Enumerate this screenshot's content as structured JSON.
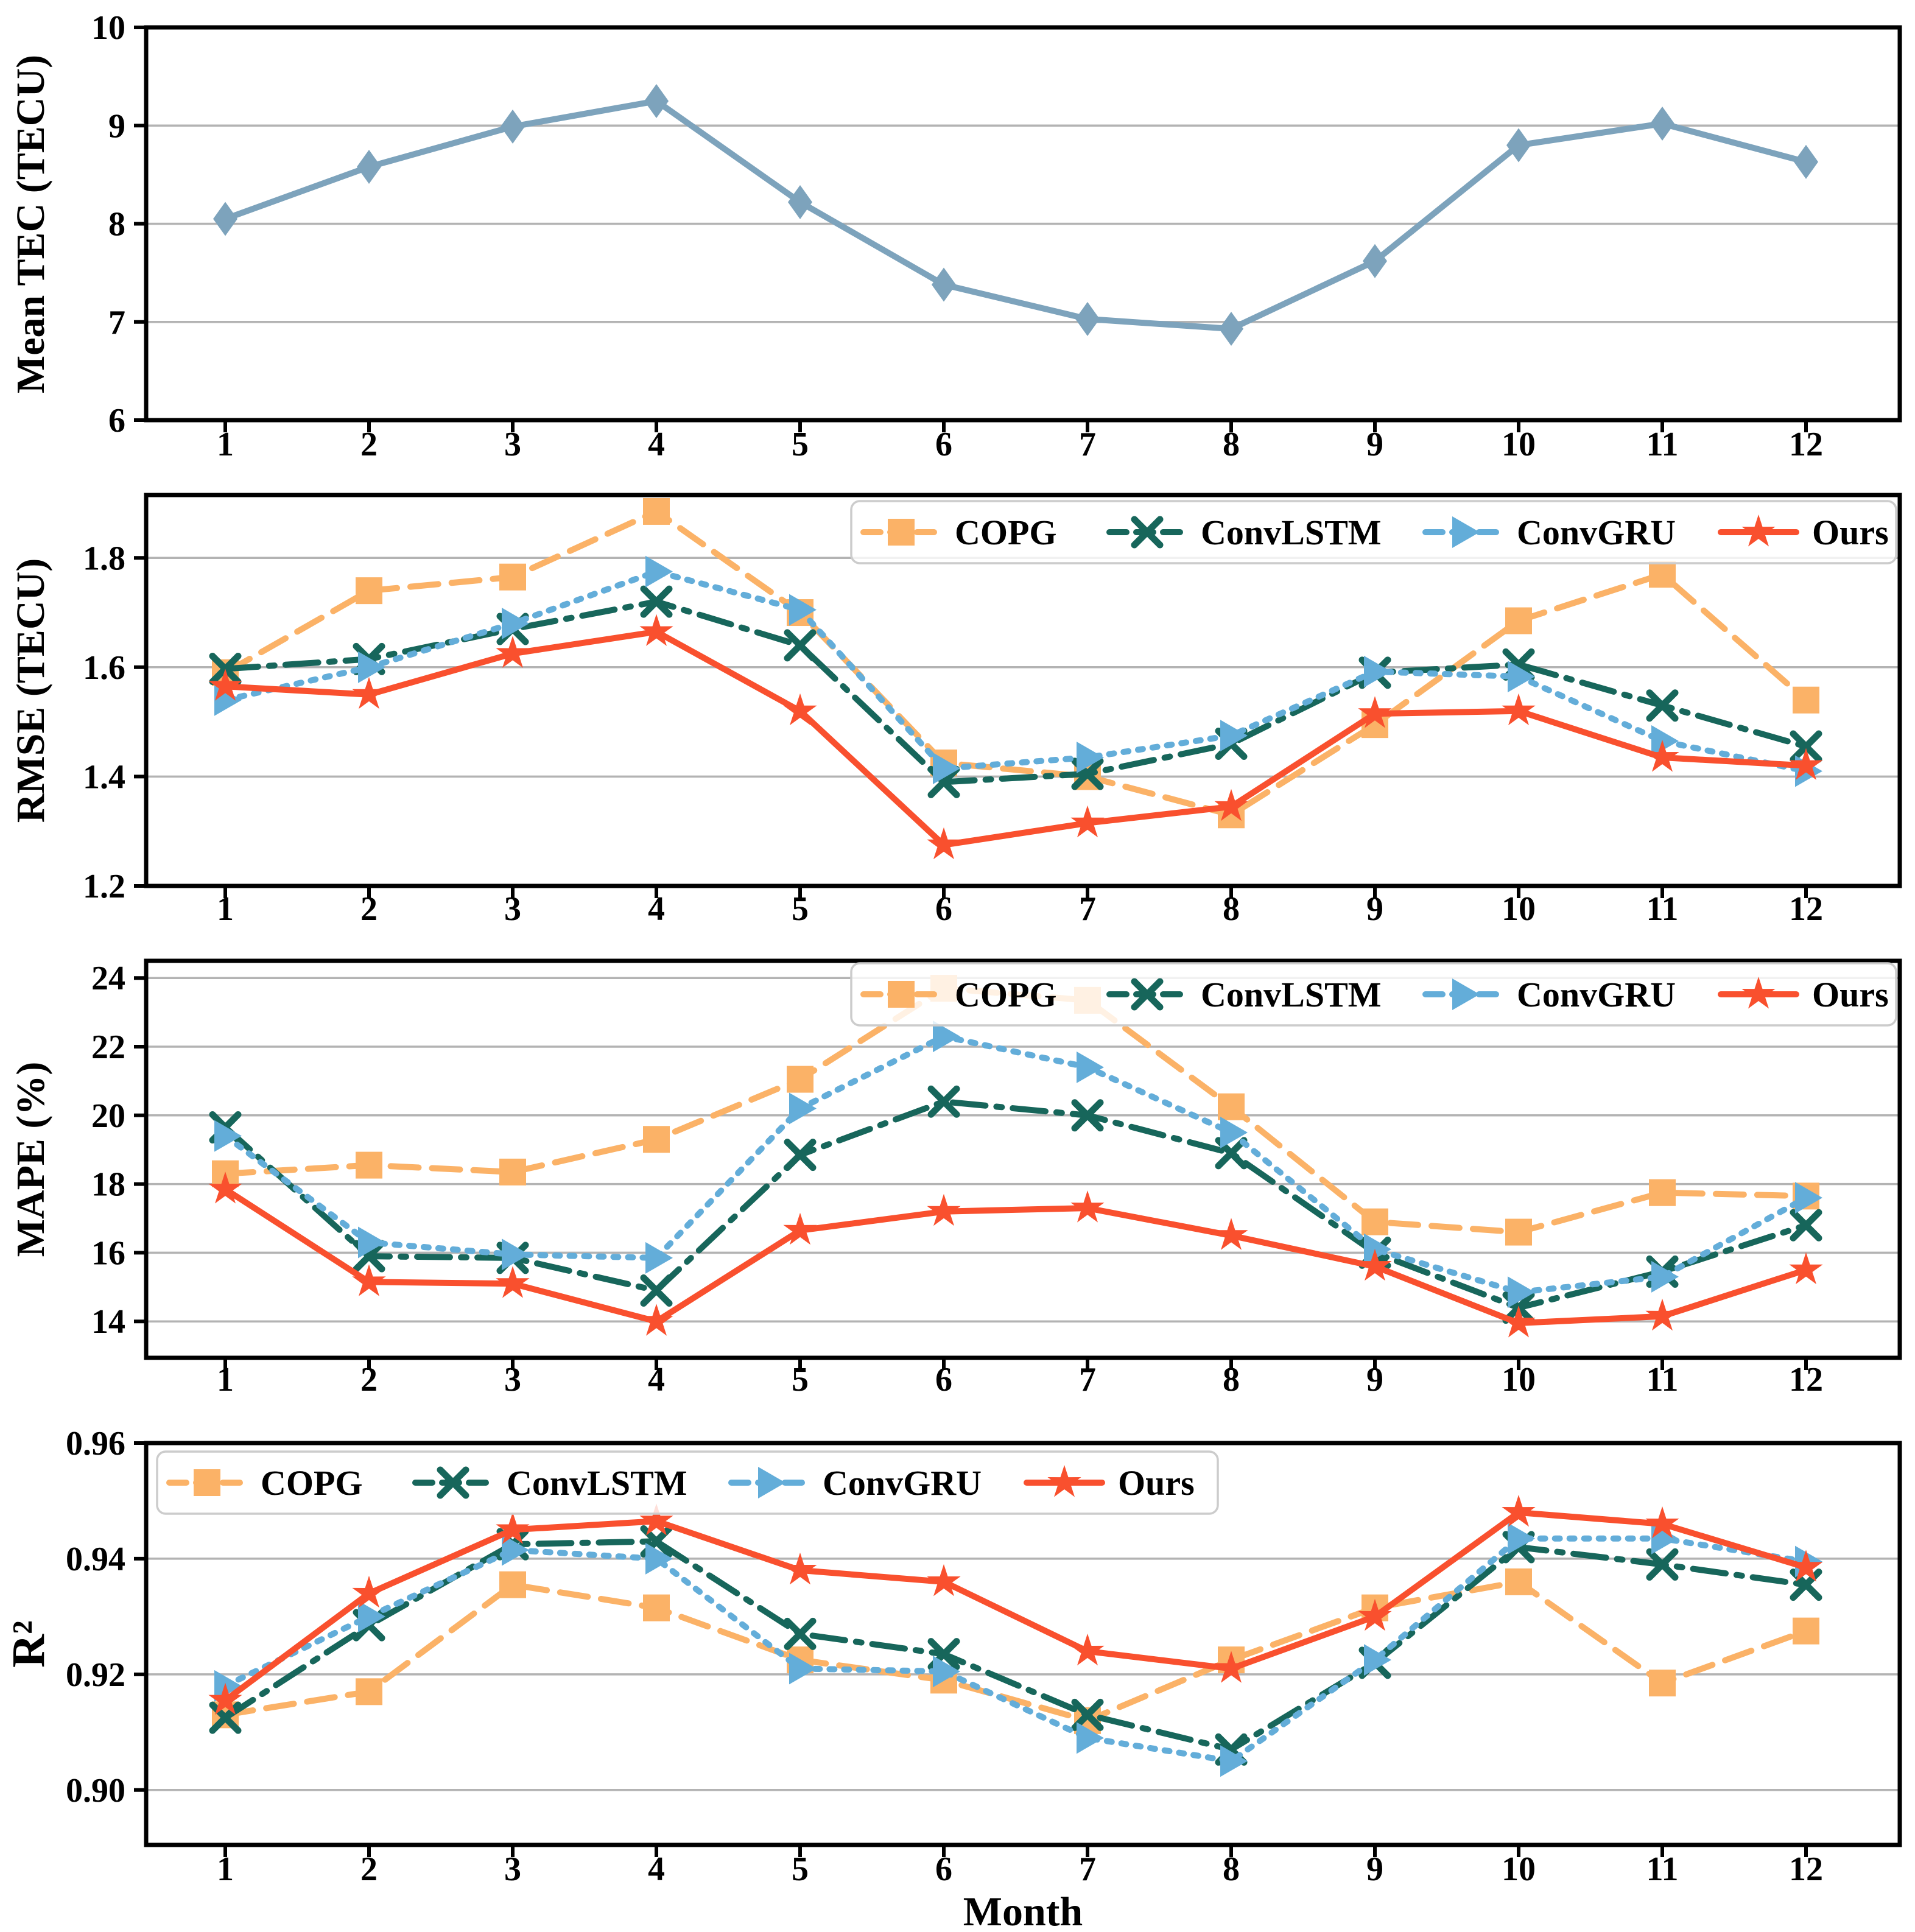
{
  "figure": {
    "xlabel": "Month",
    "months": [
      1,
      2,
      3,
      4,
      5,
      6,
      7,
      8,
      9,
      10,
      11,
      12
    ],
    "colors": {
      "copg": "#FBB267",
      "convlstm": "#17665B",
      "convgru": "#63ADD9",
      "ours": "#F9502E",
      "mean_tec": "#7DA3BC",
      "grid": "#B3B3B3",
      "axis": "#000000",
      "legend_border": "#CCCCCC",
      "legend_fill": "#FFFFFF"
    }
  },
  "chart_data": [
    {
      "type": "line",
      "title": "",
      "xlabel": "",
      "ylabel": "Mean TEC (TECU)",
      "x": [
        1,
        2,
        3,
        4,
        5,
        6,
        7,
        8,
        9,
        10,
        11,
        12
      ],
      "ylim": [
        6,
        10
      ],
      "yticks": {
        "values": [
          6,
          7,
          8,
          9,
          10
        ],
        "labels": [
          "6",
          "7",
          "8",
          "9",
          "10"
        ]
      },
      "gridlines": [
        7,
        8,
        9
      ],
      "legend": null,
      "series": [
        {
          "name": "Mean TEC",
          "color": "#7DA3BC",
          "marker": "diamond",
          "line": "solid",
          "values": [
            8.05,
            8.58,
            8.99,
            9.25,
            8.22,
            7.38,
            7.03,
            6.93,
            7.62,
            8.8,
            9.02,
            8.63
          ]
        }
      ]
    },
    {
      "type": "line",
      "title": "",
      "xlabel": "",
      "ylabel": "RMSE (TECU)",
      "x": [
        1,
        2,
        3,
        4,
        5,
        6,
        7,
        8,
        9,
        10,
        11,
        12
      ],
      "ylim": [
        1.2,
        1.915
      ],
      "yticks": {
        "values": [
          1.2,
          1.4,
          1.6,
          1.8
        ],
        "labels": [
          "1.2",
          "1.4",
          "1.6",
          "1.8"
        ]
      },
      "gridlines": [
        1.4,
        1.6,
        1.8
      ],
      "legend": "top-right",
      "series": [
        {
          "name": "COPG",
          "color": "#FBB267",
          "marker": "square",
          "line": "dashed",
          "values": [
            1.59,
            1.74,
            1.765,
            1.885,
            1.7,
            1.425,
            1.4,
            1.33,
            1.495,
            1.685,
            1.77,
            1.54
          ]
        },
        {
          "name": "ConvLSTM",
          "color": "#17665B",
          "marker": "x",
          "line": "dashdot",
          "values": [
            1.597,
            1.615,
            1.67,
            1.72,
            1.64,
            1.39,
            1.405,
            1.46,
            1.59,
            1.605,
            1.53,
            1.455
          ]
        },
        {
          "name": "ConvGRU",
          "color": "#63ADD9",
          "marker": "triangle-right",
          "line": "dotted",
          "values": [
            1.54,
            1.6,
            1.68,
            1.775,
            1.705,
            1.415,
            1.435,
            1.475,
            1.592,
            1.583,
            1.465,
            1.41
          ]
        },
        {
          "name": "Ours",
          "color": "#F9502E",
          "marker": "star",
          "line": "solid",
          "values": [
            1.565,
            1.55,
            1.625,
            1.665,
            1.52,
            1.275,
            1.315,
            1.345,
            1.515,
            1.52,
            1.435,
            1.42
          ]
        }
      ]
    },
    {
      "type": "line",
      "title": "",
      "xlabel": "",
      "ylabel": "MAPE (%)",
      "x": [
        1,
        2,
        3,
        4,
        5,
        6,
        7,
        8,
        9,
        10,
        11,
        12
      ],
      "ylim": [
        12.94,
        24.5
      ],
      "yticks": {
        "values": [
          14,
          16,
          18,
          20,
          22,
          24
        ],
        "labels": [
          "14",
          "16",
          "18",
          "20",
          "22",
          "24"
        ]
      },
      "gridlines": [
        14,
        16,
        18,
        20,
        22,
        24
      ],
      "legend": "top-right",
      "series": [
        {
          "name": "COPG",
          "color": "#FBB267",
          "marker": "square",
          "line": "dashed",
          "values": [
            18.3,
            18.55,
            18.35,
            19.3,
            21.05,
            23.7,
            23.35,
            20.25,
            16.9,
            16.6,
            17.75,
            17.65
          ]
        },
        {
          "name": "ConvLSTM",
          "color": "#17665B",
          "marker": "x",
          "line": "dashdot",
          "values": [
            19.65,
            15.9,
            15.85,
            14.9,
            18.85,
            20.4,
            20.0,
            18.9,
            16.0,
            14.4,
            15.45,
            16.8
          ]
        },
        {
          "name": "ConvGRU",
          "color": "#63ADD9",
          "marker": "triangle-right",
          "line": "dotted",
          "values": [
            19.4,
            16.3,
            15.95,
            15.85,
            20.2,
            22.3,
            21.4,
            19.5,
            16.1,
            14.85,
            15.3,
            17.6
          ]
        },
        {
          "name": "Ours",
          "color": "#F9502E",
          "marker": "star",
          "line": "solid",
          "values": [
            17.85,
            15.15,
            15.1,
            14.0,
            16.65,
            17.2,
            17.3,
            16.5,
            15.6,
            13.95,
            14.15,
            15.5
          ]
        }
      ]
    },
    {
      "type": "line",
      "title": "",
      "xlabel": "Month",
      "ylabel": "R²",
      "x": [
        1,
        2,
        3,
        4,
        5,
        6,
        7,
        8,
        9,
        10,
        11,
        12
      ],
      "ylim": [
        0.8905,
        0.96
      ],
      "yticks": {
        "values": [
          0.9,
          0.92,
          0.94,
          0.96
        ],
        "labels": [
          "0.90",
          "0.92",
          "0.94",
          "0.96"
        ]
      },
      "gridlines": [
        0.9,
        0.92,
        0.94
      ],
      "legend": "top-left",
      "series": [
        {
          "name": "COPG",
          "color": "#FBB267",
          "marker": "square",
          "line": "dashed",
          "values": [
            0.913,
            0.917,
            0.9355,
            0.9315,
            0.9225,
            0.919,
            0.912,
            0.9225,
            0.9315,
            0.936,
            0.9185,
            0.9275
          ]
        },
        {
          "name": "ConvLSTM",
          "color": "#17665B",
          "marker": "x",
          "line": "dashdot",
          "values": [
            0.9125,
            0.9285,
            0.9425,
            0.943,
            0.927,
            0.9235,
            0.913,
            0.907,
            0.922,
            0.942,
            0.939,
            0.9355
          ]
        },
        {
          "name": "ConvGRU",
          "color": "#63ADD9",
          "marker": "triangle-right",
          "line": "dotted",
          "values": [
            0.918,
            0.93,
            0.9415,
            0.94,
            0.921,
            0.9205,
            0.909,
            0.905,
            0.9225,
            0.9435,
            0.9435,
            0.9395
          ]
        },
        {
          "name": "Ours",
          "color": "#F9502E",
          "marker": "star",
          "line": "solid",
          "values": [
            0.9155,
            0.934,
            0.945,
            0.9465,
            0.938,
            0.936,
            0.924,
            0.921,
            0.93,
            0.948,
            0.946,
            0.9385
          ]
        }
      ]
    }
  ]
}
